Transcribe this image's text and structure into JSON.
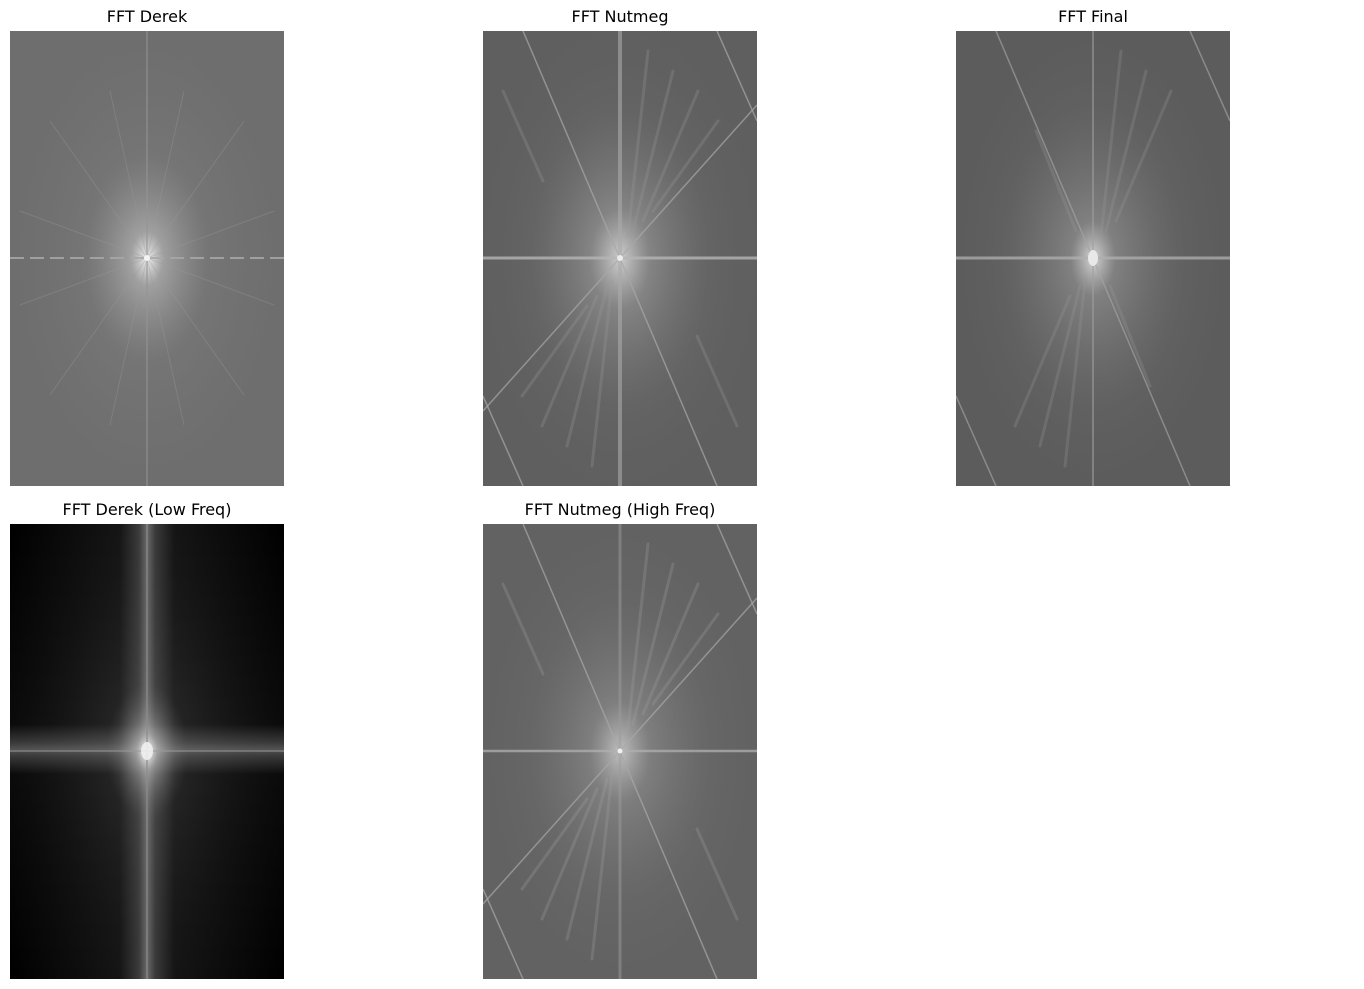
{
  "figure": {
    "panels": [
      {
        "title": "FFT Derek",
        "kind": "derek-full"
      },
      {
        "title": "FFT Nutmeg",
        "kind": "nutmeg-full"
      },
      {
        "title": "FFT Final",
        "kind": "final"
      },
      {
        "title": "FFT Derek (Low Freq)",
        "kind": "derek-low"
      },
      {
        "title": "FFT Nutmeg (High Freq)",
        "kind": "nutmeg-high"
      }
    ]
  }
}
